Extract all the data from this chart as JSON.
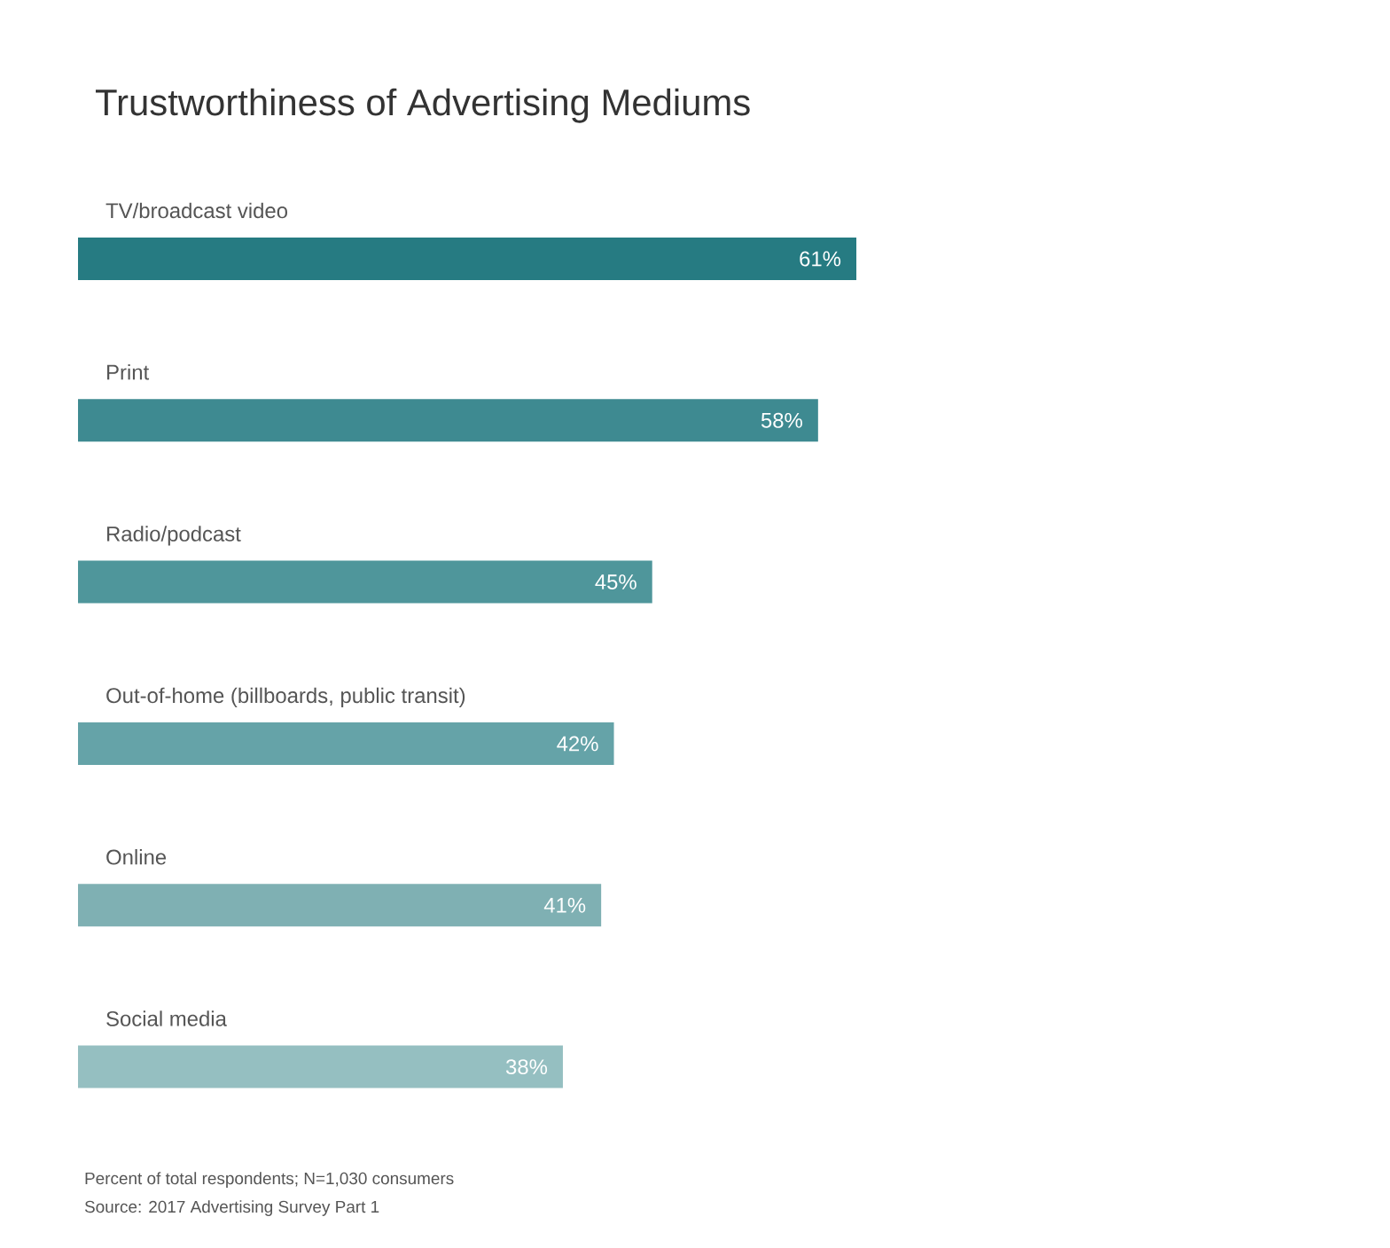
{
  "chart_data": {
    "type": "bar",
    "orientation": "horizontal",
    "title": "Trustworthiness of Advertising Mediums",
    "categories": [
      "TV/broadcast video",
      "Print",
      "Radio/podcast",
      "Out-of-home (billboards, public transit)",
      "Online",
      "Social media"
    ],
    "values": [
      61,
      58,
      45,
      42,
      41,
      38
    ],
    "colors": [
      "#267b82",
      "#3e8a91",
      "#4f969b",
      "#65a3a8",
      "#7fb0b3",
      "#95bfc1"
    ],
    "data_labels": true,
    "value_labels": [
      "61%",
      "58%",
      "45%",
      "42%",
      "41%",
      "38%"
    ],
    "annotations": [
      "Percent of total respondents; N=1,030 consumers",
      "Source: 2017 Advertising Survey Part 1"
    ]
  }
}
